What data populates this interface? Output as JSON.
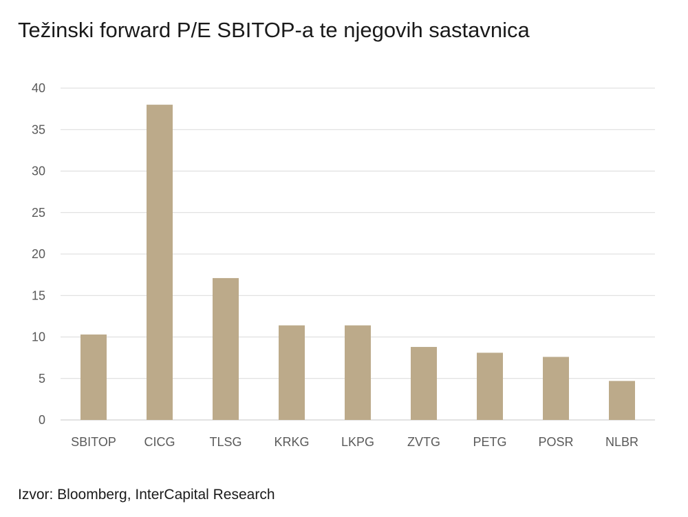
{
  "title": "Težinski forward P/E SBITOP-a te njegovih sastavnica",
  "source": "Izvor: Bloomberg, InterCapital Research",
  "chart_data": {
    "type": "bar",
    "title": "Težinski forward P/E SBITOP-a te njegovih sastavnica",
    "xlabel": "",
    "ylabel": "",
    "categories": [
      "SBITOP",
      "CICG",
      "TLSG",
      "KRKG",
      "LKPG",
      "ZVTG",
      "PETG",
      "POSR",
      "NLBR"
    ],
    "values": [
      10.3,
      38.0,
      17.1,
      11.4,
      11.4,
      8.8,
      8.1,
      7.6,
      4.7
    ],
    "ylim": [
      0,
      40
    ],
    "yticks": [
      0,
      5,
      10,
      15,
      20,
      25,
      30,
      35,
      40
    ],
    "grid": true,
    "legend": "none",
    "bar_color": "#bcaa8a",
    "grid_color": "#d9d9d9"
  }
}
